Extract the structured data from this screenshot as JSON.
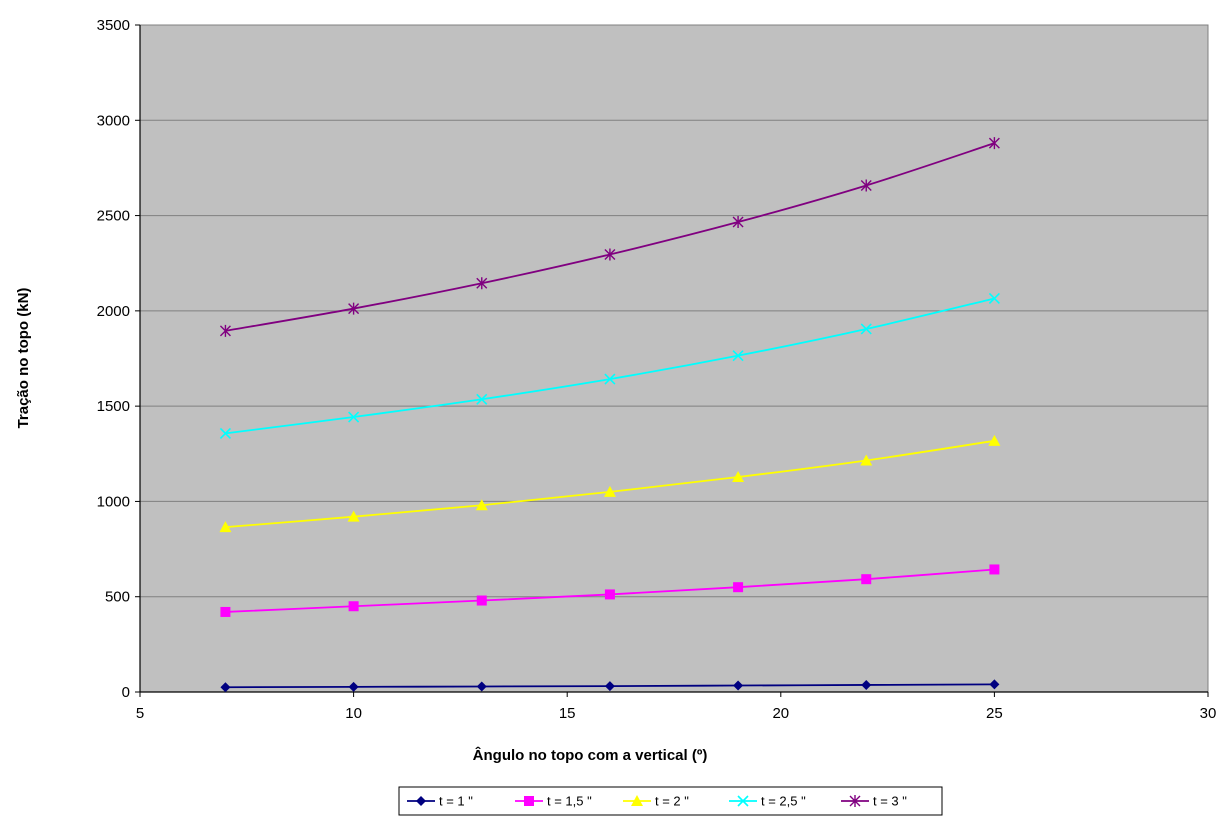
{
  "chart_data": {
    "type": "line",
    "title": "",
    "xlabel": "Ângulo no topo com a vertical (º)",
    "ylabel": "Tração no topo (kN)",
    "xlim": [
      5,
      30
    ],
    "ylim": [
      0,
      3500
    ],
    "xticks": [
      "5",
      "10",
      "15",
      "20",
      "25",
      "30"
    ],
    "yticks": [
      "0",
      "500",
      "1000",
      "1500",
      "2000",
      "2500",
      "3000",
      "3500"
    ],
    "grid": true,
    "legend_position": "bottom",
    "plot_background": "#c0c0c0",
    "x": [
      7,
      10,
      13,
      16,
      19,
      22,
      25
    ],
    "series": [
      {
        "name": "t = 1 \"",
        "color": "#000080",
        "marker": "diamond",
        "values": [
          25,
          27,
          29,
          31,
          34,
          37,
          40
        ]
      },
      {
        "name": "t = 1,5 \"",
        "color": "#ff00ff",
        "marker": "square",
        "values": [
          420,
          450,
          480,
          512,
          550,
          592,
          643
        ]
      },
      {
        "name": "t = 2 \"",
        "color": "#ffff00",
        "marker": "triangle",
        "values": [
          865,
          920,
          980,
          1050,
          1128,
          1215,
          1318
        ]
      },
      {
        "name": "t = 2,5 \"",
        "color": "#00ffff",
        "marker": "x",
        "values": [
          1357,
          1443,
          1536,
          1642,
          1765,
          1905,
          2065
        ]
      },
      {
        "name": "t = 3 \"",
        "color": "#800080",
        "marker": "star",
        "values": [
          1895,
          2012,
          2145,
          2296,
          2466,
          2658,
          2880
        ]
      }
    ]
  }
}
